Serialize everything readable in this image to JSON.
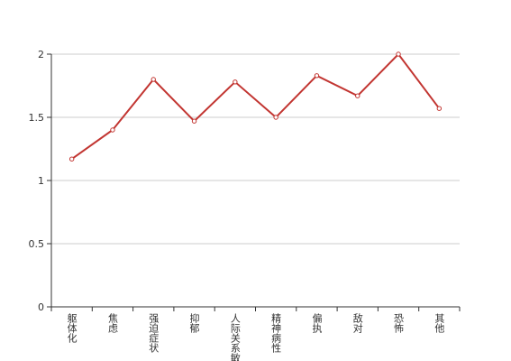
{
  "chart_data": {
    "type": "line",
    "categories": [
      "躯体化",
      "焦虑",
      "强迫症状",
      "抑郁",
      "人际关系敏感",
      "精神病性",
      "偏执",
      "敌对",
      "恐怖",
      "其他"
    ],
    "series": [
      {
        "color": "#c23531",
        "values": [
          1.17,
          1.4,
          1.8,
          1.47,
          1.78,
          1.5,
          1.83,
          1.67,
          2.0,
          1.57
        ]
      }
    ],
    "ylim": [
      0,
      2
    ],
    "yticks": [
      0,
      0.5,
      1,
      1.5,
      2
    ],
    "grid": true
  }
}
